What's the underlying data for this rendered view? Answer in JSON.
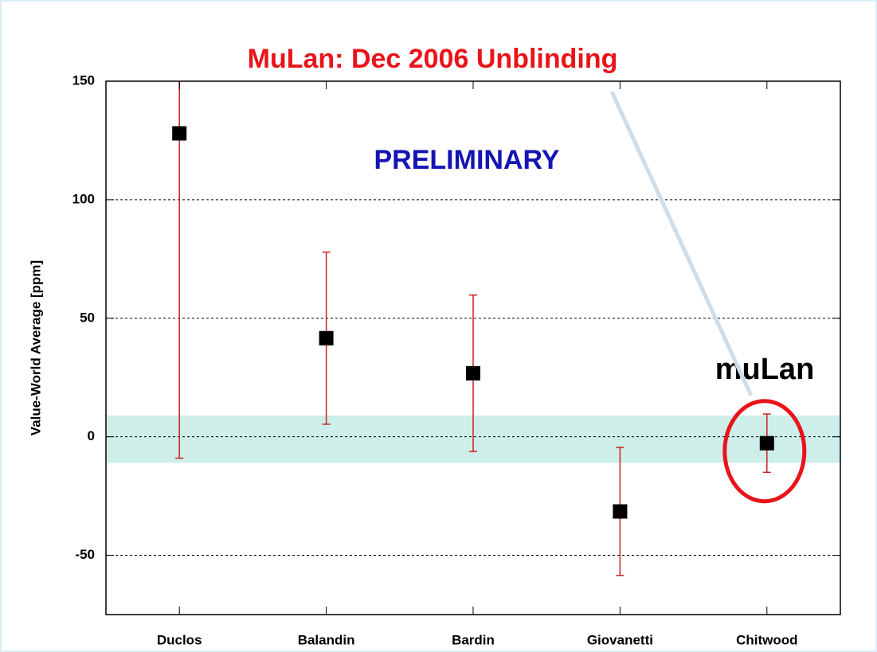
{
  "chart_data": {
    "type": "errorbar",
    "title": "MuLan: Dec 2006 Unblinding",
    "ylabel": "Value-World Average [ppm]",
    "annotations": [
      "PRELIMINARY",
      "muLan"
    ],
    "categories": [
      "Duclos",
      "Balandin",
      "Bardin",
      "Giovanetti",
      "Chitwood"
    ],
    "series": [
      {
        "values": [
          128,
          41.6,
          26.8,
          -31.5,
          -2.7
        ],
        "errors": [
          137,
          36.3,
          33,
          27,
          12.3
        ],
        "color": "#000000",
        "error_color": "#cc2222"
      }
    ],
    "band": [
      -11,
      9
    ],
    "band_color": "#cdeee9",
    "ylim": [
      -75,
      150
    ],
    "yticks": [
      -50,
      0,
      50,
      100,
      150
    ],
    "grid": true
  }
}
